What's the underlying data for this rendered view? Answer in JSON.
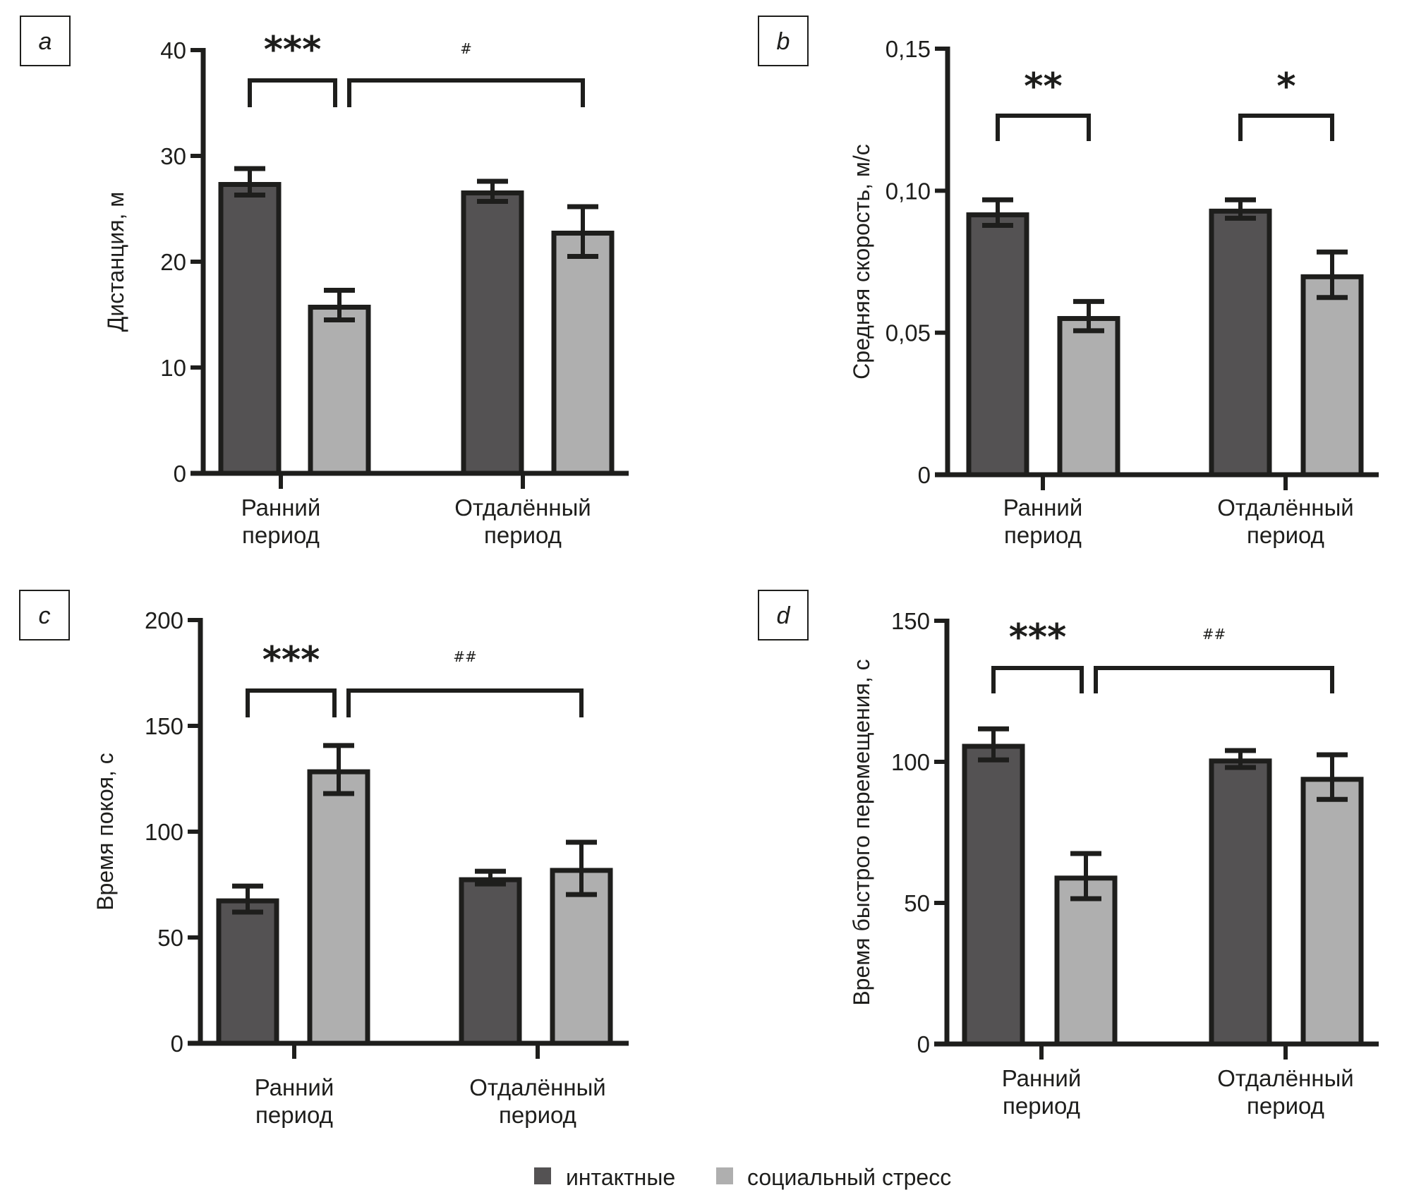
{
  "colors": {
    "intact": "#545253",
    "stress": "#afafaf",
    "ink": "#1e1e1c"
  },
  "legend": {
    "items": [
      {
        "label": "интактные",
        "color": "#545253"
      },
      {
        "label": "социальный стресс",
        "color": "#afafaf"
      }
    ]
  },
  "chart_data": [
    {
      "type": "bar",
      "panel": "a",
      "title": "",
      "xlabel": "",
      "ylabel": "Дистанция, м",
      "ylim": [
        0,
        40
      ],
      "yticks": [
        0,
        10,
        20,
        30,
        40
      ],
      "ytick_labels": [
        "0",
        "10",
        "20",
        "30",
        "40"
      ],
      "categories": [
        [
          "Ранний",
          "период"
        ],
        [
          "Отдалённый",
          "период"
        ]
      ],
      "series": [
        {
          "name": "интактные",
          "values": [
            27.3,
            26.5
          ],
          "error_low": [
            26.3,
            25.7
          ],
          "error_high": [
            28.8,
            27.6
          ]
        },
        {
          "name": "социальный стресс",
          "values": [
            15.7,
            22.7
          ],
          "error_low": [
            14.5,
            20.5
          ],
          "error_high": [
            17.3,
            25.2
          ]
        }
      ],
      "annotations": [
        {
          "text": "***",
          "from": [
            0,
            0
          ],
          "to": [
            0,
            1
          ],
          "kind": "stars"
        },
        {
          "text": "#",
          "from": [
            0,
            1
          ],
          "to": [
            1,
            1
          ],
          "kind": "hash"
        }
      ],
      "grid": false
    },
    {
      "type": "bar",
      "panel": "b",
      "title": "",
      "xlabel": "",
      "ylabel": "Средняя скорость, м/с",
      "ylim": [
        0,
        0.15
      ],
      "yticks": [
        0,
        0.05,
        0.1,
        0.15
      ],
      "ytick_labels": [
        "0",
        "0,05",
        "0,10",
        "0,15"
      ],
      "categories": [
        [
          "Ранний",
          "период"
        ],
        [
          "Отдалённый",
          "период"
        ]
      ],
      "series": [
        {
          "name": "интактные",
          "values": [
            0.0915,
            0.0928
          ],
          "error_low": [
            0.0878,
            0.0903
          ],
          "error_high": [
            0.0968,
            0.0968
          ]
        },
        {
          "name": "социальный стресс",
          "values": [
            0.055,
            0.0697
          ],
          "error_low": [
            0.0507,
            0.0624
          ],
          "error_high": [
            0.061,
            0.0784
          ]
        }
      ],
      "annotations": [
        {
          "text": "**",
          "from": [
            0,
            0
          ],
          "to": [
            0,
            1
          ],
          "kind": "stars"
        },
        {
          "text": "*",
          "from": [
            1,
            0
          ],
          "to": [
            1,
            1
          ],
          "kind": "stars"
        }
      ],
      "grid": false
    },
    {
      "type": "bar",
      "panel": "c",
      "title": "",
      "xlabel": "",
      "ylabel": "Время покоя, с",
      "ylim": [
        0,
        200
      ],
      "yticks": [
        0,
        50,
        100,
        150,
        200
      ],
      "ytick_labels": [
        "0",
        "50",
        "100",
        "150",
        "200"
      ],
      "categories": [
        [
          "Ранний",
          "период"
        ],
        [
          "Отдалённый",
          "период"
        ]
      ],
      "series": [
        {
          "name": "интактные",
          "values": [
            67.3,
            77.3
          ],
          "error_low": [
            62.0,
            75.3
          ],
          "error_high": [
            74.3,
            81.3
          ]
        },
        {
          "name": "социальный стресс",
          "values": [
            128.3,
            81.7
          ],
          "error_low": [
            118.0,
            70.3
          ],
          "error_high": [
            140.7,
            95.0
          ]
        }
      ],
      "annotations": [
        {
          "text": "***",
          "from": [
            0,
            0
          ],
          "to": [
            0,
            1
          ],
          "kind": "stars"
        },
        {
          "text": "##",
          "from": [
            0,
            1
          ],
          "to": [
            1,
            1
          ],
          "kind": "hash"
        }
      ],
      "grid": false
    },
    {
      "type": "bar",
      "panel": "d",
      "title": "",
      "xlabel": "",
      "ylabel": "Время быстрого перемещения, с",
      "ylim": [
        0,
        150
      ],
      "yticks": [
        0,
        50,
        100,
        150
      ],
      "ytick_labels": [
        "0",
        "50",
        "100",
        "150"
      ],
      "categories": [
        [
          "Ранний",
          "период"
        ],
        [
          "Отдалённый",
          "период"
        ]
      ],
      "series": [
        {
          "name": "интактные",
          "values": [
            105.5,
            100.3
          ],
          "error_low": [
            100.7,
            98.0
          ],
          "error_high": [
            111.7,
            104.0
          ]
        },
        {
          "name": "социальный стресс",
          "values": [
            58.8,
            93.8
          ],
          "error_low": [
            51.5,
            86.7
          ],
          "error_high": [
            67.5,
            102.5
          ]
        }
      ],
      "annotations": [
        {
          "text": "***",
          "from": [
            0,
            0
          ],
          "to": [
            0,
            1
          ],
          "kind": "stars"
        },
        {
          "text": "##",
          "from": [
            0,
            1
          ],
          "to": [
            1,
            1
          ],
          "kind": "hash"
        }
      ],
      "grid": false
    }
  ]
}
